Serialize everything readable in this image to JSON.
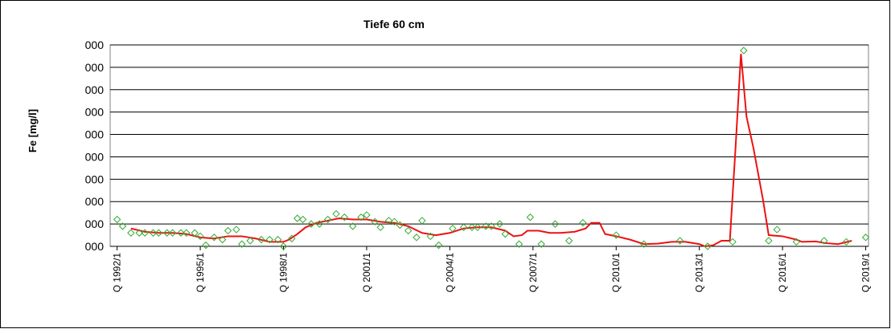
{
  "chart_data": {
    "type": "line",
    "title": "Tiefe  60 cm",
    "y_label": "Fe [mg/l]",
    "xlim": [
      1991.75,
      2019.1
    ],
    "xticks": [
      {
        "value": 1992,
        "label": "Q 1992/1"
      },
      {
        "value": 1995,
        "label": "Q 1995/1"
      },
      {
        "value": 1998,
        "label": "Q 1998/1"
      },
      {
        "value": 2001,
        "label": "Q 2001/1"
      },
      {
        "value": 2004,
        "label": "Q 2004/1"
      },
      {
        "value": 2007,
        "label": "Q 2007/1"
      },
      {
        "value": 2010,
        "label": "Q 2010/1"
      },
      {
        "value": 2013,
        "label": "Q 2013/1"
      },
      {
        "value": 2016,
        "label": "Q 2016/1"
      },
      {
        "value": 2019,
        "label": "Q 2019/1"
      }
    ],
    "ylim": [
      0,
      9
    ],
    "yticks": [
      {
        "value": 0,
        "label": "000"
      },
      {
        "value": 1,
        "label": "000"
      },
      {
        "value": 2,
        "label": "000"
      },
      {
        "value": 3,
        "label": "000"
      },
      {
        "value": 4,
        "label": "000"
      },
      {
        "value": 5,
        "label": "000"
      },
      {
        "value": 6,
        "label": "000"
      },
      {
        "value": 7,
        "label": "000"
      },
      {
        "value": 8,
        "label": "000"
      },
      {
        "value": 9,
        "label": "000"
      }
    ],
    "grid": true,
    "series": [
      {
        "type": "scatter",
        "color": "#33aa33",
        "x": [
          1992.0,
          1992.2,
          1992.5,
          1992.8,
          1993.0,
          1993.3,
          1993.5,
          1993.8,
          1994.0,
          1994.3,
          1994.5,
          1994.8,
          1995.0,
          1995.2,
          1995.5,
          1995.8,
          1996.0,
          1996.3,
          1996.5,
          1996.8,
          1997.2,
          1997.5,
          1997.8,
          1998.0,
          1998.3,
          1998.5,
          1998.7,
          1999.0,
          1999.3,
          1999.6,
          1999.9,
          2000.2,
          2000.5,
          2000.8,
          2001.0,
          2001.3,
          2001.5,
          2001.8,
          2002.0,
          2002.2,
          2002.5,
          2002.8,
          2003.0,
          2003.3,
          2003.6,
          2004.1,
          2004.5,
          2004.8,
          2005.0,
          2005.3,
          2005.5,
          2005.8,
          2006.0,
          2006.5,
          2006.9,
          2007.3,
          2007.8,
          2008.3,
          2008.8,
          2010.0,
          2011.0,
          2012.3,
          2013.3,
          2014.2,
          2014.6,
          2015.5,
          2015.8,
          2016.5,
          2017.5,
          2018.3,
          2019.0
        ],
        "values": [
          1.2,
          0.9,
          0.6,
          0.6,
          0.6,
          0.6,
          0.6,
          0.6,
          0.6,
          0.6,
          0.6,
          0.6,
          0.45,
          0.05,
          0.4,
          0.3,
          0.7,
          0.75,
          0.1,
          0.25,
          0.3,
          0.3,
          0.3,
          0.0,
          0.35,
          1.25,
          1.2,
          1.0,
          1.0,
          1.2,
          1.45,
          1.3,
          0.9,
          1.3,
          1.4,
          1.1,
          0.85,
          1.15,
          1.1,
          0.95,
          0.7,
          0.4,
          1.15,
          0.45,
          0.05,
          0.8,
          0.85,
          0.85,
          0.85,
          0.9,
          0.9,
          1.0,
          0.55,
          0.1,
          1.3,
          0.1,
          1.0,
          0.25,
          1.05,
          0.5,
          0.1,
          0.25,
          0.0,
          0.2,
          8.75,
          0.25,
          0.75,
          0.2,
          0.25,
          0.2,
          0.4
        ]
      },
      {
        "type": "line",
        "color": "#ee1111",
        "x": [
          1992.5,
          1993.0,
          1993.5,
          1994.0,
          1994.5,
          1995.0,
          1995.5,
          1996.0,
          1996.5,
          1997.0,
          1997.5,
          1998.0,
          1998.2,
          1998.5,
          1998.8,
          1999.2,
          1999.6,
          2000.0,
          2000.5,
          2001.0,
          2001.5,
          2002.0,
          2002.5,
          2003.0,
          2003.5,
          2004.0,
          2004.5,
          2005.0,
          2005.5,
          2006.0,
          2006.3,
          2006.6,
          2006.8,
          2007.2,
          2007.6,
          2008.0,
          2008.5,
          2008.9,
          2009.1,
          2009.4,
          2009.6,
          2010.0,
          2010.5,
          2011.0,
          2011.5,
          2012.0,
          2012.5,
          2013.0,
          2013.2,
          2013.5,
          2013.8,
          2014.1,
          2014.3,
          2014.5,
          2014.7,
          2014.95,
          2015.3,
          2015.5,
          2016.0,
          2016.5,
          2016.7,
          2017.2,
          2017.5,
          2018.0,
          2018.5
        ],
        "values": [
          0.8,
          0.65,
          0.6,
          0.6,
          0.55,
          0.4,
          0.35,
          0.45,
          0.45,
          0.35,
          0.2,
          0.2,
          0.3,
          0.55,
          0.85,
          1.05,
          1.15,
          1.25,
          1.2,
          1.2,
          1.1,
          1.05,
          0.9,
          0.6,
          0.5,
          0.6,
          0.8,
          0.85,
          0.85,
          0.7,
          0.45,
          0.5,
          0.7,
          0.7,
          0.6,
          0.6,
          0.65,
          0.8,
          1.05,
          1.05,
          0.55,
          0.45,
          0.3,
          0.1,
          0.12,
          0.2,
          0.2,
          0.1,
          0.0,
          0.05,
          0.25,
          0.25,
          4.3,
          8.6,
          5.8,
          4.4,
          2.05,
          0.5,
          0.45,
          0.3,
          0.2,
          0.22,
          0.15,
          0.1,
          0.25
        ]
      }
    ]
  }
}
